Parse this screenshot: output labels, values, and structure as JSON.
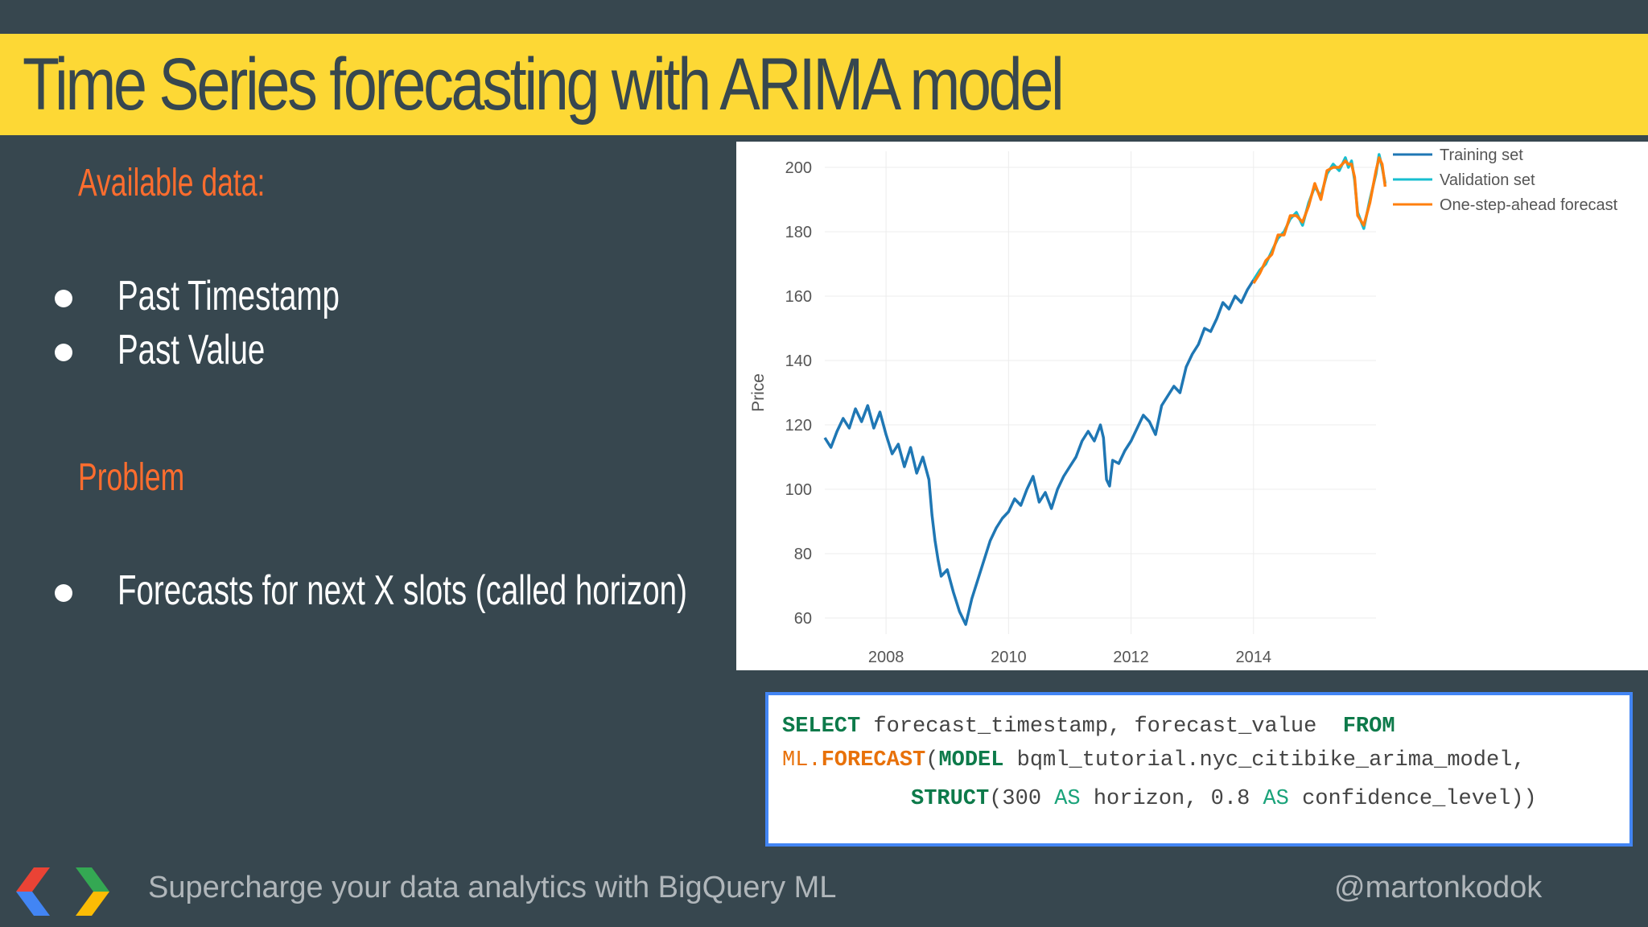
{
  "slide": {
    "title": "Time Series forecasting with ARIMA model",
    "sections": [
      {
        "heading": "Available data:",
        "bullets": [
          "Past Timestamp",
          "Past Value"
        ]
      },
      {
        "heading": "Problem",
        "bullets": [
          "Forecasts for next X slots (called horizon)"
        ]
      }
    ]
  },
  "code": {
    "line1": {
      "kw1": "SELECT",
      "t1": " forecast_timestamp, forecast_value  ",
      "kw2": "FROM"
    },
    "line2": {
      "ml": "ML.",
      "fn": "FORECAST",
      "t1": "(",
      "kw": "MODEL",
      "t2": " bqml_tutorial.nyc_citibike_arima_model,"
    },
    "line3": {
      "kw": "STRUCT",
      "t1": "(300 ",
      "as1": "AS",
      "t2": " horizon, 0.8 ",
      "as2": "AS",
      "t3": " confidence_level))"
    }
  },
  "footer": {
    "tagline": "Supercharge your data analytics with BigQuery ML",
    "handle": "@martonkodok"
  },
  "colors": {
    "background": "#37474f",
    "title_bar": "#fdd835",
    "heading": "#ff6d2e",
    "code_border": "#4285f4"
  },
  "chart_data": {
    "type": "line",
    "title": "",
    "xlabel": "",
    "ylabel": "Price",
    "xlim": [
      2007.0,
      2016.0
    ],
    "ylim": [
      55,
      205
    ],
    "x_ticks": [
      2008,
      2010,
      2012,
      2014
    ],
    "y_ticks": [
      60,
      80,
      100,
      120,
      140,
      160,
      180,
      200
    ],
    "grid": true,
    "legend_position": "top-right",
    "series": [
      {
        "name": "Training set",
        "color": "#1f77b4",
        "x": [
          2007.0,
          2007.1,
          2007.2,
          2007.3,
          2007.4,
          2007.5,
          2007.6,
          2007.7,
          2007.8,
          2007.9,
          2008.0,
          2008.1,
          2008.2,
          2008.3,
          2008.4,
          2008.5,
          2008.6,
          2008.7,
          2008.75,
          2008.8,
          2008.85,
          2008.9,
          2009.0,
          2009.1,
          2009.2,
          2009.3,
          2009.4,
          2009.5,
          2009.6,
          2009.7,
          2009.8,
          2009.9,
          2010.0,
          2010.1,
          2010.2,
          2010.3,
          2010.4,
          2010.5,
          2010.6,
          2010.7,
          2010.8,
          2010.9,
          2011.0,
          2011.1,
          2011.2,
          2011.3,
          2011.4,
          2011.5,
          2011.55,
          2011.6,
          2011.65,
          2011.7,
          2011.8,
          2011.9,
          2012.0,
          2012.1,
          2012.2,
          2012.3,
          2012.4,
          2012.5,
          2012.6,
          2012.7,
          2012.8,
          2012.9,
          2013.0,
          2013.1,
          2013.2,
          2013.3,
          2013.4,
          2013.5,
          2013.6,
          2013.7,
          2013.8,
          2013.9,
          2014.0
        ],
        "y": [
          116,
          113,
          118,
          122,
          119,
          125,
          121,
          126,
          119,
          124,
          117,
          111,
          114,
          107,
          113,
          105,
          110,
          103,
          92,
          84,
          78,
          73,
          75,
          68,
          62,
          58,
          66,
          72,
          78,
          84,
          88,
          91,
          93,
          97,
          95,
          100,
          104,
          96,
          99,
          94,
          100,
          104,
          107,
          110,
          115,
          118,
          115,
          120,
          116,
          103,
          101,
          109,
          108,
          112,
          115,
          119,
          123,
          121,
          117,
          126,
          129,
          132,
          130,
          138,
          142,
          145,
          150,
          149,
          153,
          158,
          156,
          160,
          158,
          162,
          165
        ]
      },
      {
        "name": "Validation set",
        "color": "#17becf",
        "x": [
          2014.0,
          2014.1,
          2014.2,
          2014.3,
          2014.4,
          2014.5,
          2014.6,
          2014.7,
          2014.8,
          2014.9,
          2015.0,
          2015.1,
          2015.2,
          2015.3,
          2015.4,
          2015.5,
          2015.55,
          2015.6,
          2015.65,
          2015.7,
          2015.8,
          2015.9,
          2016.0,
          2016.05,
          2016.1,
          2016.15
        ],
        "y": [
          165,
          168,
          170,
          174,
          178,
          180,
          184,
          186,
          182,
          189,
          194,
          191,
          198,
          201,
          199,
          203,
          200,
          202,
          196,
          186,
          181,
          190,
          198,
          204,
          200,
          195
        ]
      },
      {
        "name": "One-step-ahead forecast",
        "color": "#ff7f0e",
        "x": [
          2014.0,
          2014.1,
          2014.2,
          2014.3,
          2014.4,
          2014.5,
          2014.6,
          2014.7,
          2014.8,
          2014.9,
          2015.0,
          2015.1,
          2015.2,
          2015.3,
          2015.4,
          2015.5,
          2015.55,
          2015.6,
          2015.65,
          2015.7,
          2015.8,
          2015.9,
          2016.0,
          2016.05,
          2016.1,
          2016.15
        ],
        "y": [
          164,
          167,
          171,
          173,
          179,
          179,
          185,
          185,
          183,
          188,
          195,
          190,
          199,
          200,
          200,
          202,
          201,
          201,
          197,
          185,
          182,
          189,
          199,
          203,
          201,
          194
        ]
      }
    ]
  }
}
